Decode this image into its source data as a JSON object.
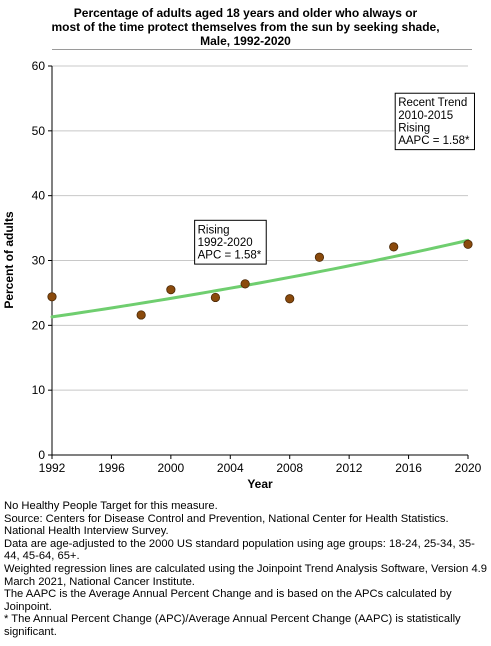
{
  "chart_data": {
    "type": "scatter",
    "title_lines": [
      "Percentage of adults aged 18 years and older who always or",
      "most of the time protect themselves from the sun by seeking shade,",
      "Male,  1992-2020"
    ],
    "xlabel": "Year",
    "ylabel": "Percent of adults",
    "xlim": [
      1992,
      2020
    ],
    "ylim": [
      0,
      60
    ],
    "x_ticks": [
      1992,
      1996,
      2000,
      2004,
      2008,
      2012,
      2016,
      2020
    ],
    "y_ticks": [
      0,
      10,
      20,
      30,
      40,
      50,
      60
    ],
    "grid": true,
    "points": [
      {
        "x": 1992,
        "y": 24.4
      },
      {
        "x": 1998,
        "y": 21.6
      },
      {
        "x": 2000,
        "y": 25.5
      },
      {
        "x": 2003,
        "y": 24.3
      },
      {
        "x": 2005,
        "y": 26.4
      },
      {
        "x": 2008,
        "y": 24.1
      },
      {
        "x": 2010,
        "y": 30.5
      },
      {
        "x": 2015,
        "y": 32.1
      },
      {
        "x": 2020,
        "y": 32.5
      }
    ],
    "trend": {
      "x_start": 1992,
      "y_start": 21.3,
      "x_end": 2020,
      "y_end": 33.1,
      "apc_percent": 1.58
    },
    "annotations": [
      {
        "lines": [
          "Recent Trend",
          "2010-2015",
          "Rising",
          "AAPC =  1.58*"
        ],
        "anchor_x": 2015.1,
        "anchor_y": 55.8
      },
      {
        "lines": [
          "Rising",
          "1992-2020",
          "APC =  1.58*"
        ],
        "anchor_x": 2001.6,
        "anchor_y": 36.2
      }
    ],
    "colors": {
      "point_fill": "#8a4a0c",
      "point_stroke": "#4a2806",
      "trend_line": "#6fce6f",
      "grid": "#c8c8c8",
      "axis": "#000000"
    }
  },
  "notes": [
    "No Healthy People Target for this measure.",
    "Source: Centers for Disease Control and Prevention, National Center for Health Statistics. National Health Interview Survey.",
    "Data are age-adjusted to the 2000 US standard population using age groups: 18-24, 25-34, 35-44, 45-64, 65+.",
    "Weighted regression lines are calculated using the Joinpoint Trend Analysis Software, Version 4.9 March 2021, National Cancer Institute.",
    "The AAPC is the Average Annual Percent Change and is based on the APCs calculated by Joinpoint.",
    "* The Annual Percent Change (APC)/Average Annual Percent Change (AAPC) is statistically significant."
  ]
}
